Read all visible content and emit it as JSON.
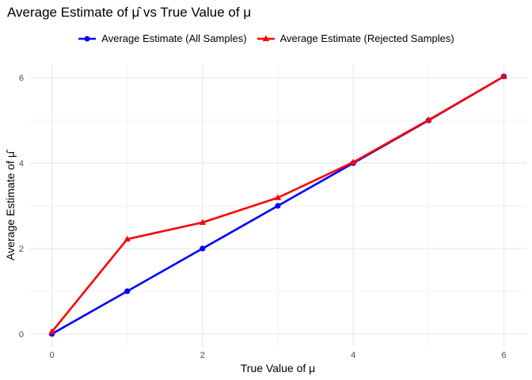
{
  "chart_data": {
    "type": "line",
    "title": "Average Estimate of μ̂ vs True Value of μ",
    "xlabel": "True Value of μ",
    "ylabel": "Average Estimate of μ̂",
    "x": [
      0,
      1,
      2,
      3,
      4,
      5,
      6
    ],
    "xlim": [
      -0.3,
      6.3
    ],
    "ylim": [
      -0.3,
      6.3
    ],
    "xticks": [
      0,
      2,
      4,
      6
    ],
    "yticks": [
      0,
      2,
      4,
      6
    ],
    "grid": true,
    "legend_position": "top",
    "series": [
      {
        "name": "Average Estimate (All Samples)",
        "color": "#0000ff",
        "marker": "circle",
        "values": [
          0.0,
          1.0,
          2.0,
          3.0,
          4.0,
          5.0,
          6.03
        ]
      },
      {
        "name": "Average Estimate (Rejected Samples)",
        "color": "#ff0000",
        "marker": "triangle",
        "values": [
          0.05,
          2.22,
          2.61,
          3.19,
          4.02,
          5.01,
          6.03
        ]
      }
    ]
  }
}
